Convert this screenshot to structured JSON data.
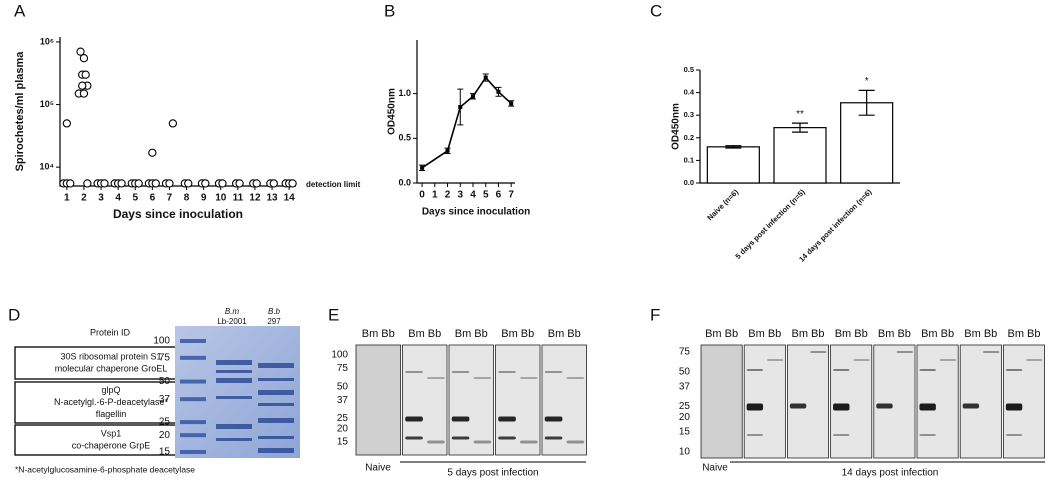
{
  "panel_labels": [
    "A",
    "B",
    "C",
    "D",
    "E",
    "F"
  ],
  "chart_data": [
    {
      "type": "scatter",
      "log_y": true,
      "y_label": "Spirochetes/ml plasma",
      "x_label": "Days since inoculation",
      "annotation": "detection limit",
      "xlim": [
        0.6,
        14.4
      ],
      "xticks": [
        1,
        2,
        3,
        4,
        5,
        6,
        7,
        8,
        9,
        10,
        11,
        12,
        13,
        14
      ],
      "ylim": [
        5000,
        1200000
      ],
      "yticks": [
        {
          "value": 10000,
          "label": "10⁴"
        },
        {
          "value": 100000,
          "label": "10⁵"
        },
        {
          "value": 1000000,
          "label": "10⁶"
        }
      ],
      "x": [
        0.8,
        1.0,
        1.2,
        1.0,
        1.7,
        1.8,
        1.9,
        2.0,
        2.1,
        2.2,
        2.0,
        1.9,
        2.2,
        2.8,
        3.0,
        3.2,
        3.8,
        4.0,
        4.2,
        4.8,
        5.0,
        5.2,
        5.8,
        6.0,
        6.2,
        6.0,
        6.8,
        7.0,
        7.2,
        7.9,
        8.1,
        8.9,
        9.1,
        9.9,
        10.1,
        10.9,
        11.1,
        11.9,
        12.1,
        12.9,
        13.1,
        13.8,
        14.0,
        14.2
      ],
      "y": [
        5500,
        5500,
        5500,
        50000,
        150000,
        700000,
        300000,
        550000,
        300000,
        200000,
        150000,
        200000,
        5500,
        5500,
        5500,
        5500,
        5500,
        5500,
        5500,
        5500,
        5500,
        5500,
        5500,
        5500,
        5500,
        17000,
        5500,
        5500,
        50000,
        5500,
        5500,
        5500,
        5500,
        5500,
        5500,
        5500,
        5500,
        5500,
        5500,
        5500,
        5500,
        5500,
        5500,
        5500
      ]
    },
    {
      "type": "line",
      "y_label": "OD450nm",
      "x_label": "Days since inoculation",
      "xlim": [
        -0.4,
        7.3
      ],
      "xticks": [
        0,
        1,
        2,
        3,
        4,
        5,
        6,
        7
      ],
      "ylim": [
        0,
        1.6
      ],
      "yticks": [
        {
          "value": 0,
          "label": "0.0"
        },
        0.5,
        {
          "value": 1,
          "label": "1.0"
        }
      ],
      "x": [
        0,
        2,
        3,
        4,
        5,
        6,
        7
      ],
      "values": [
        0.17,
        0.36,
        0.85,
        0.97,
        1.18,
        1.02,
        0.89
      ],
      "errors": [
        0.03,
        0.03,
        0.2,
        0.03,
        0.04,
        0.05,
        0.03
      ],
      "color": "#000000"
    },
    {
      "type": "bar",
      "y_label": "OD450nm",
      "categories": [
        "Naive (n=6)",
        "5 days post infection (n=5)",
        "14 days post infection (n=6)"
      ],
      "values": [
        0.16,
        0.245,
        0.355
      ],
      "errors": [
        0.005,
        0.02,
        0.055
      ],
      "annotations": [
        null,
        "**",
        "*"
      ],
      "ylim": [
        0,
        0.5
      ],
      "yticks": [
        {
          "value": 0,
          "label": "0.0"
        },
        0.1,
        0.2,
        0.3,
        0.4,
        0.5
      ],
      "color": "#ffffff"
    }
  ],
  "panel_d": {
    "header": "Protein ID",
    "boxes": [
      [
        "30S ribosomal protein S1",
        "molecular chaperone GroEL"
      ],
      [
        "glpQ",
        "N-acetylgl.-6-P-deacetylase*",
        "flagellin"
      ],
      [
        "Vsp1",
        "co-chaperone GrpE"
      ]
    ],
    "markers": [
      100,
      75,
      50,
      37,
      25,
      20,
      15
    ],
    "lanes": [
      {
        "species": "B.m",
        "strain": "Lb-2001"
      },
      {
        "species": "B.b",
        "strain": "297"
      }
    ],
    "footnote": "*N-acetylglucosamine-6-phosphate deacetylase"
  },
  "panel_e": {
    "markers": [
      100,
      75,
      50,
      37,
      25,
      20,
      15
    ],
    "lane_headers": [
      "Bm Bb",
      "Bm Bb",
      "Bm Bb",
      "Bm Bb",
      "Bm Bb"
    ],
    "groups": [
      "Naive",
      "5 days post infection"
    ]
  },
  "panel_f": {
    "markers": [
      75,
      50,
      37,
      25,
      20,
      15,
      10
    ],
    "lane_headers": [
      "Bm Bb",
      "Bm Bb",
      "Bm Bb",
      "Bm Bb",
      "Bm Bb",
      "Bm Bb",
      "Bm Bb",
      "Bm Bb"
    ],
    "groups": [
      "Naive",
      "14 days post infection"
    ]
  }
}
